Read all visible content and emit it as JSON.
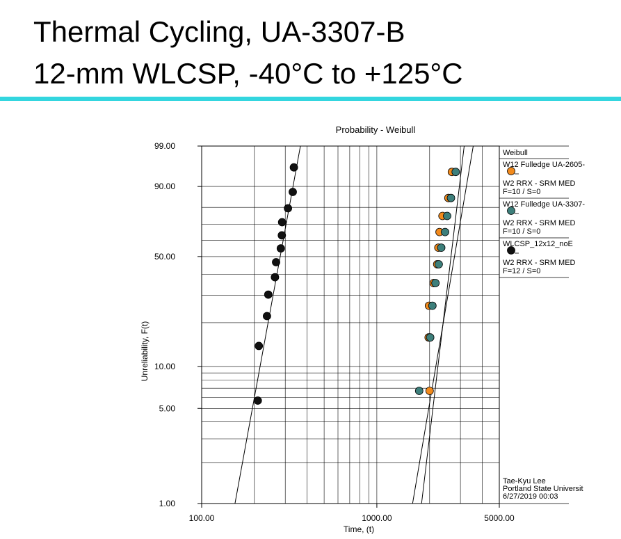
{
  "slide": {
    "title_line1": "Thermal Cycling, UA-3307-B",
    "title_line2": "12-mm WLCSP, -40°C to +125°C",
    "rule_color": "#33d6df"
  },
  "chart_data": {
    "type": "scatter",
    "title": "Probability - Weibull",
    "xlabel": "Time, (t)",
    "ylabel": "Unreliability, F(t)",
    "x_scale": "log",
    "y_scale": "weibull",
    "xlim": [
      100,
      5000
    ],
    "ylim": [
      1,
      99
    ],
    "x_tick_labels": [
      "100.00",
      "1000.00",
      "5000.00"
    ],
    "x_ticks": [
      100,
      1000,
      5000
    ],
    "y_tick_labels": [
      "1.00",
      "5.00",
      "10.00",
      "50.00",
      "90.00",
      "99.00"
    ],
    "y_ticks": [
      1,
      5,
      10,
      50,
      90,
      99
    ],
    "grid": true,
    "legend_title": "Weibull",
    "legend_position": "right",
    "series": [
      {
        "name": "W12 Fulledge UA-2605-",
        "detail_line1": "W2 RRX - SRM MED",
        "detail_line2": "F=10 / S=0",
        "color": "#f28a1c",
        "points": [
          [
            2000,
            6.7
          ],
          [
            1975,
            15.9
          ],
          [
            1985,
            25.8
          ],
          [
            2110,
            35.6
          ],
          [
            2210,
            45.5
          ],
          [
            2245,
            55.4
          ],
          [
            2280,
            65.2
          ],
          [
            2370,
            75.1
          ],
          [
            2560,
            84.9
          ],
          [
            2680,
            94.8
          ]
        ],
        "fit_line": [
          [
            1600,
            1
          ],
          [
            3550,
            99
          ]
        ]
      },
      {
        "name": "W12 Fulledge UA-3307-",
        "detail_line1": "W2 RRX - SRM MED",
        "detail_line2": "F=10 / S=0",
        "color": "#3d7f7b",
        "points": [
          [
            1745,
            6.7
          ],
          [
            2015,
            15.9
          ],
          [
            2075,
            25.8
          ],
          [
            2160,
            35.6
          ],
          [
            2255,
            45.5
          ],
          [
            2330,
            55.4
          ],
          [
            2450,
            65.2
          ],
          [
            2520,
            75.1
          ],
          [
            2650,
            84.9
          ],
          [
            2820,
            94.8
          ]
        ],
        "fit_line": [
          [
            1800,
            1
          ],
          [
            3150,
            99
          ]
        ]
      },
      {
        "name": "WLCSP_12x12_noE",
        "detail_line1": "W2 RRX - SRM MED",
        "detail_line2": "F=12 / S=0",
        "color": "#111111",
        "points": [
          [
            209,
            5.7
          ],
          [
            212,
            13.9
          ],
          [
            236,
            22.1
          ],
          [
            240,
            30.3
          ],
          [
            262,
            38.5
          ],
          [
            266,
            46.7
          ],
          [
            283,
            54.9
          ],
          [
            287,
            63.1
          ],
          [
            288,
            71.3
          ],
          [
            311,
            79.5
          ],
          [
            331,
            87.7
          ],
          [
            336,
            95.9
          ]
        ],
        "fit_line": [
          [
            155,
            1
          ],
          [
            366,
            99
          ]
        ]
      }
    ],
    "footer": [
      "Tae-Kyu Lee",
      "Portland State Universit",
      "6/27/2019 00:03"
    ]
  }
}
